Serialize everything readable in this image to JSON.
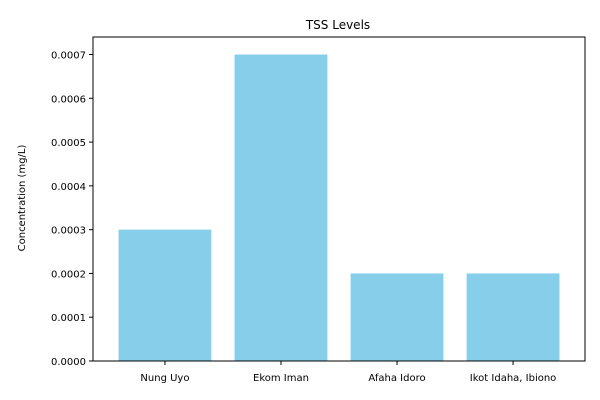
{
  "chart_data": {
    "type": "bar",
    "title": "TSS Levels",
    "xlabel": "",
    "ylabel": "Concentration (mg/L)",
    "categories": [
      "Nung Uyo",
      "Ekom Iman",
      "Afaha Idoro",
      "Ikot Idaha, Ibiono"
    ],
    "values": [
      0.0003,
      0.0007,
      0.0002,
      0.0002
    ],
    "ylim": [
      0,
      0.00074
    ],
    "yticks": [
      0,
      0.0001,
      0.0002,
      0.0003,
      0.0004,
      0.0005,
      0.0006,
      0.0007
    ],
    "ytick_labels": [
      "0.0000",
      "0.0001",
      "0.0002",
      "0.0003",
      "0.0004",
      "0.0005",
      "0.0006",
      "0.0007"
    ],
    "bar_color": "#87ceeb",
    "grid": false,
    "legend": false
  }
}
